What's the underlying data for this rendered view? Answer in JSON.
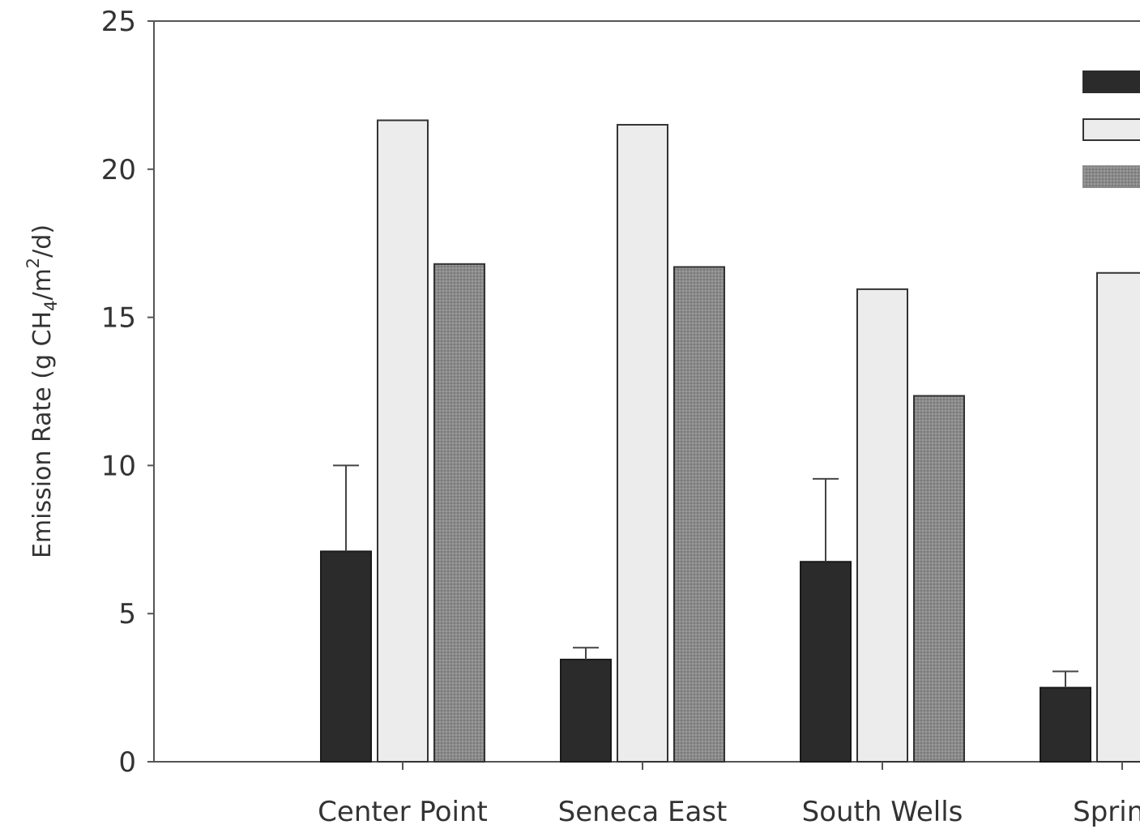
{
  "chart_data": {
    "type": "bar",
    "categories": [
      "Center Point",
      "Seneca East",
      "South Wells",
      "Springf"
    ],
    "series": [
      {
        "values": [
          7.1,
          3.45,
          6.75,
          2.5
        ],
        "error": [
          2.9,
          0.4,
          2.8,
          0.55
        ],
        "color": "#2b2b2b"
      },
      {
        "values": [
          21.65,
          21.5,
          15.95,
          16.5
        ],
        "color": "#ececec"
      },
      {
        "values": [
          16.8,
          16.7,
          12.35,
          null
        ],
        "color": "#8a8a8a"
      }
    ],
    "ylim": [
      0,
      25
    ],
    "yticks": [
      0,
      5,
      10,
      15,
      20,
      25
    ],
    "ylabel": {
      "prefix": "Emission Rate (g CH",
      "sub": "4",
      "mid": "/m",
      "sup": "2",
      "suffix": "/d)"
    },
    "legend": {
      "position": "top-right",
      "swatches": [
        "#2b2b2b",
        "#ececec",
        "#8a8a8a"
      ]
    }
  }
}
